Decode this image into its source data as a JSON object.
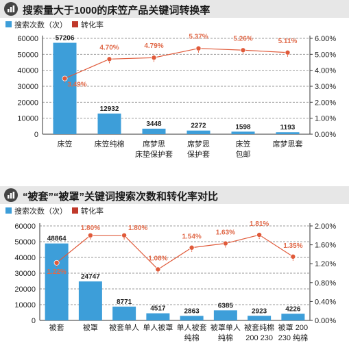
{
  "colors": {
    "bar": "#3d9ed9",
    "rate": "#e05a3a",
    "rate_label": "#e06a4a",
    "grid": "#9a9a9a",
    "header": "#e7e7e7"
  },
  "chart_data": [
    {
      "type": "bar",
      "title": "搜索量大于1000的床笠产品关键词转换率",
      "legend": {
        "bar": "搜索次数（次）",
        "line": "转化率"
      },
      "categories": [
        [
          "床笠"
        ],
        [
          "床笠纯棉"
        ],
        [
          "席梦思",
          "床垫保护套"
        ],
        [
          "席梦思",
          "保护套"
        ],
        [
          "床笠",
          "包邮"
        ],
        [
          "席梦思套"
        ]
      ],
      "series": [
        {
          "name": "搜索次数（次）",
          "type": "bar",
          "values": [
            57206,
            12932,
            3448,
            2272,
            1598,
            1193
          ],
          "labels": [
            "57206",
            "12932",
            "3448",
            "2272",
            "1598",
            "1193"
          ]
        },
        {
          "name": "转化率",
          "type": "line",
          "values": [
            3.49,
            4.7,
            4.79,
            5.37,
            5.26,
            5.11
          ],
          "labels": [
            "3.49%",
            "4.70%",
            "4.79%",
            "5.37%",
            "5.26%",
            "5.11%"
          ]
        }
      ],
      "y_left": {
        "min": 0,
        "max": 60000,
        "ticks": [
          "0",
          "10000",
          "20000",
          "30000",
          "40000",
          "50000",
          "60000"
        ]
      },
      "y_right": {
        "min": 0,
        "max": 6,
        "ticks": [
          "0.00%",
          "1.00%",
          "2.00%",
          "3.00%",
          "4.00%",
          "5.00%",
          "6.00%"
        ]
      },
      "grid": true,
      "legend_position": "top-left"
    },
    {
      "type": "bar",
      "title": "“被套”“被罩”关键词搜索次数和转化率对比",
      "legend": {
        "bar": "搜索次数（次）",
        "line": "转化率"
      },
      "categories": [
        [
          "被套"
        ],
        [
          "被罩"
        ],
        [
          "被套单人"
        ],
        [
          "单人被罩"
        ],
        [
          "单人被套",
          "纯棉"
        ],
        [
          "被罩单人",
          "纯棉"
        ],
        [
          "被套纯棉",
          "200 230"
        ],
        [
          "被罩 200",
          "230 纯棉"
        ]
      ],
      "series": [
        {
          "name": "搜索次数（次）",
          "type": "bar",
          "values": [
            48864,
            24747,
            8771,
            4517,
            2863,
            6385,
            2923,
            4226
          ],
          "labels": [
            "48864",
            "24747",
            "8771",
            "4517",
            "2863",
            "6385",
            "2923",
            "4226"
          ]
        },
        {
          "name": "转化率",
          "type": "line",
          "values": [
            1.22,
            1.8,
            1.8,
            1.08,
            1.54,
            1.63,
            1.81,
            1.35
          ],
          "labels": [
            "1.22%",
            "1.80%",
            "1.80%",
            "1.08%",
            "1.54%",
            "1.63%",
            "1.81%",
            "1.35%"
          ]
        }
      ],
      "y_left": {
        "min": 0,
        "max": 60000,
        "ticks": [
          "0",
          "10000",
          "20000",
          "30000",
          "40000",
          "50000",
          "60000"
        ]
      },
      "y_right": {
        "min": 0,
        "max": 2,
        "ticks": [
          "0.00%",
          "0.40%",
          "0.80%",
          "1.20%",
          "1.60%",
          "2.00%"
        ]
      },
      "grid": true,
      "legend_position": "top-left"
    }
  ]
}
